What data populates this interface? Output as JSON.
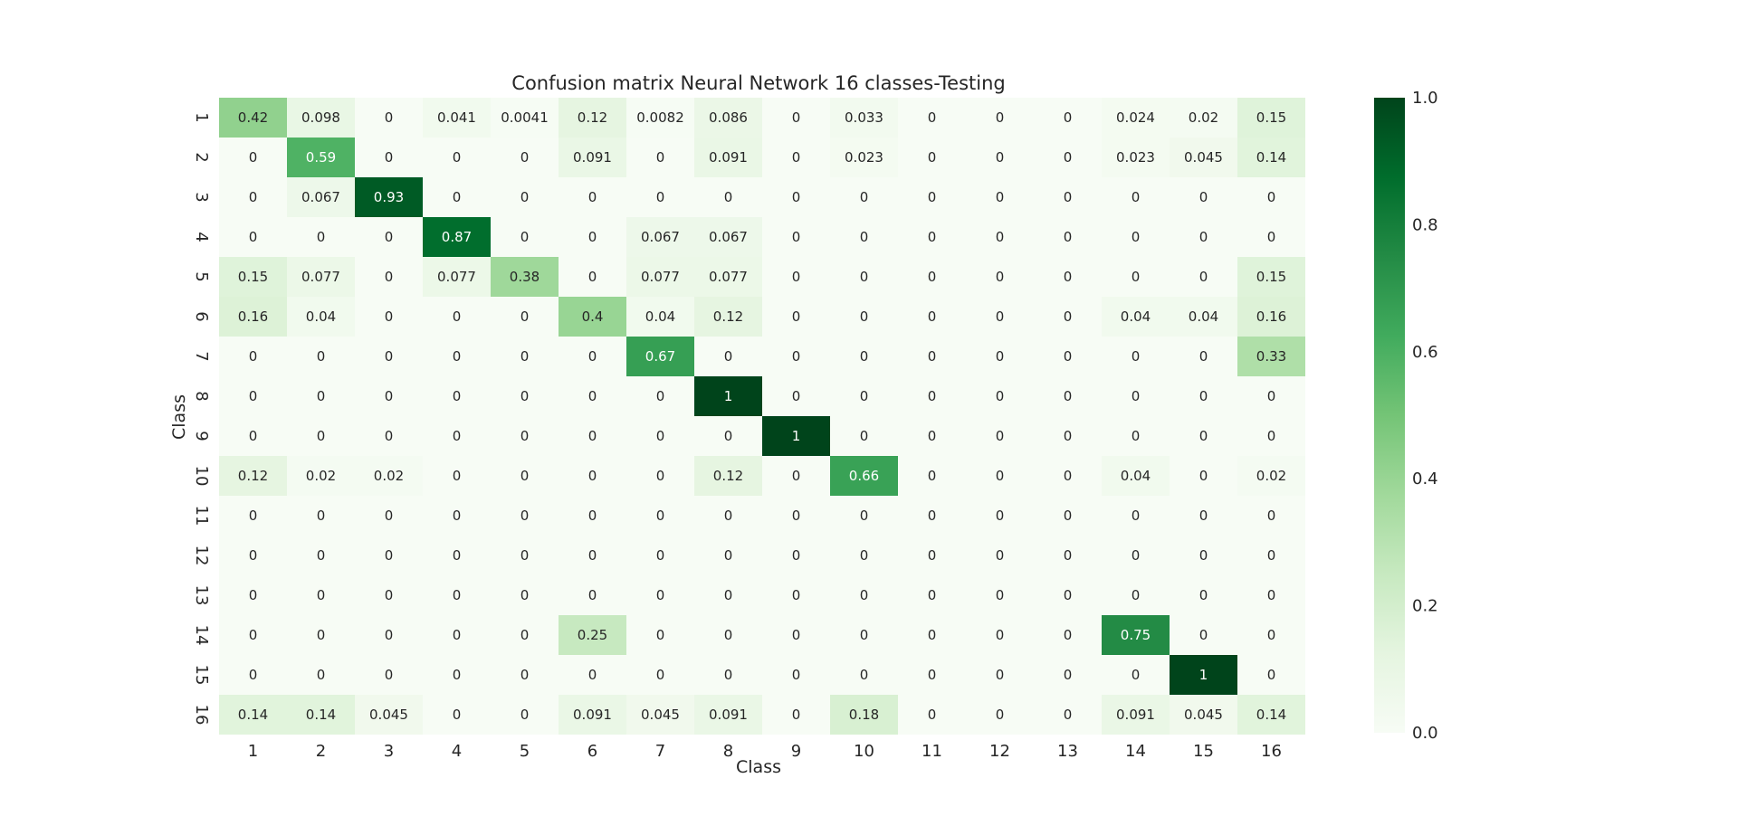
{
  "chart_data": {
    "type": "heatmap",
    "title": "Confusion matrix Neural Network 16 classes-Testing",
    "xlabel": "Class",
    "ylabel": "Class",
    "x_ticks": [
      "1",
      "2",
      "3",
      "4",
      "5",
      "6",
      "7",
      "8",
      "9",
      "10",
      "11",
      "12",
      "13",
      "14",
      "15",
      "16"
    ],
    "y_ticks": [
      "1",
      "2",
      "3",
      "4",
      "5",
      "6",
      "7",
      "8",
      "9",
      "10",
      "11",
      "12",
      "13",
      "14",
      "15",
      "16"
    ],
    "values": [
      [
        0.42,
        0.098,
        0,
        0.041,
        0.0041,
        0.12,
        0.0082,
        0.086,
        0,
        0.033,
        0,
        0,
        0,
        0.024,
        0.02,
        0.15
      ],
      [
        0,
        0.59,
        0,
        0,
        0,
        0.091,
        0,
        0.091,
        0,
        0.023,
        0,
        0,
        0,
        0.023,
        0.045,
        0.14
      ],
      [
        0,
        0.067,
        0.93,
        0,
        0,
        0,
        0,
        0,
        0,
        0,
        0,
        0,
        0,
        0,
        0,
        0
      ],
      [
        0,
        0,
        0,
        0.87,
        0,
        0,
        0.067,
        0.067,
        0,
        0,
        0,
        0,
        0,
        0,
        0,
        0
      ],
      [
        0.15,
        0.077,
        0,
        0.077,
        0.38,
        0,
        0.077,
        0.077,
        0,
        0,
        0,
        0,
        0,
        0,
        0,
        0.15
      ],
      [
        0.16,
        0.04,
        0,
        0,
        0,
        0.4,
        0.04,
        0.12,
        0,
        0,
        0,
        0,
        0,
        0.04,
        0.04,
        0.16
      ],
      [
        0,
        0,
        0,
        0,
        0,
        0,
        0.67,
        0,
        0,
        0,
        0,
        0,
        0,
        0,
        0,
        0.33
      ],
      [
        0,
        0,
        0,
        0,
        0,
        0,
        0,
        1,
        0,
        0,
        0,
        0,
        0,
        0,
        0,
        0
      ],
      [
        0,
        0,
        0,
        0,
        0,
        0,
        0,
        0,
        1,
        0,
        0,
        0,
        0,
        0,
        0,
        0
      ],
      [
        0.12,
        0.02,
        0.02,
        0,
        0,
        0,
        0,
        0.12,
        0,
        0.66,
        0,
        0,
        0,
        0.04,
        0,
        0.02
      ],
      [
        0,
        0,
        0,
        0,
        0,
        0,
        0,
        0,
        0,
        0,
        0,
        0,
        0,
        0,
        0,
        0
      ],
      [
        0,
        0,
        0,
        0,
        0,
        0,
        0,
        0,
        0,
        0,
        0,
        0,
        0,
        0,
        0,
        0
      ],
      [
        0,
        0,
        0,
        0,
        0,
        0,
        0,
        0,
        0,
        0,
        0,
        0,
        0,
        0,
        0,
        0
      ],
      [
        0,
        0,
        0,
        0,
        0,
        0.25,
        0,
        0,
        0,
        0,
        0,
        0,
        0,
        0.75,
        0,
        0
      ],
      [
        0,
        0,
        0,
        0,
        0,
        0,
        0,
        0,
        0,
        0,
        0,
        0,
        0,
        0,
        1,
        0
      ],
      [
        0.14,
        0.14,
        0.045,
        0,
        0,
        0.091,
        0.045,
        0.091,
        0,
        0.18,
        0,
        0,
        0,
        0.091,
        0.045,
        0.14
      ]
    ],
    "vmin": 0,
    "vmax": 1,
    "colormap": "Greens",
    "colorbar_ticks": [
      "0.0",
      "0.2",
      "0.4",
      "0.6",
      "0.8",
      "1.0"
    ],
    "colorbar_values": [
      0,
      0.2,
      0.4,
      0.6,
      0.8,
      1.0
    ],
    "colors": {
      "low": "#f7fcf5",
      "high": "#00441b",
      "text_dark": "#262626",
      "text_light": "#ffffff"
    }
  }
}
